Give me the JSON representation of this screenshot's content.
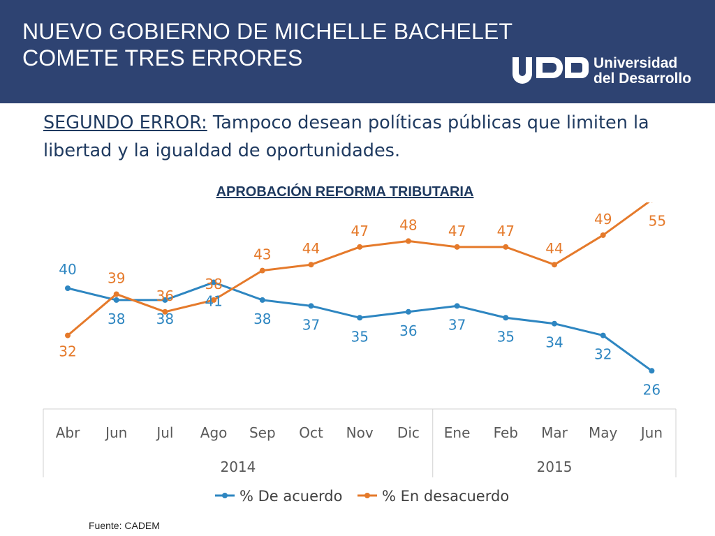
{
  "header": {
    "title_line1": "NUEVO GOBIERNO DE MICHELLE BACHELET",
    "title_line2": "COMETE TRES ERRORES",
    "logo_line1": "Universidad",
    "logo_line2": "del Desarrollo"
  },
  "subtitle": {
    "lead": "SEGUNDO ERROR:",
    "text": " Tampoco desean políticas públicas que limiten la libertad y la igualdad de oportunidades."
  },
  "colors": {
    "header_bg": "#2e4372",
    "series_acuerdo": "#2e86c1",
    "series_desacuerdo": "#e57a2b",
    "text_dark": "#1f3a60"
  },
  "chart_data": {
    "type": "line",
    "title": "APROBACIÓN REFORMA TRIBUTARIA",
    "categories": [
      "Abr",
      "Jun",
      "Jul",
      "Ago",
      "Sep",
      "Oct",
      "Nov",
      "Dic",
      "Ene",
      "Feb",
      "Mar",
      "May",
      "Jun"
    ],
    "groups": [
      {
        "label": "2014",
        "start": 0,
        "end": 7
      },
      {
        "label": "2015",
        "start": 8,
        "end": 12
      }
    ],
    "series": [
      {
        "name": "% De acuerdo",
        "color": "#2e86c1",
        "values": [
          40,
          38,
          38,
          41,
          38,
          37,
          35,
          36,
          37,
          35,
          34,
          32,
          26
        ]
      },
      {
        "name": "% En desacuerdo",
        "color": "#e57a2b",
        "values": [
          32,
          39,
          36,
          38,
          43,
          44,
          47,
          48,
          47,
          47,
          44,
          49,
          55
        ]
      }
    ],
    "legend_position": "bottom",
    "grid": false
  },
  "footer": {
    "source": "Fuente: CADEM"
  }
}
